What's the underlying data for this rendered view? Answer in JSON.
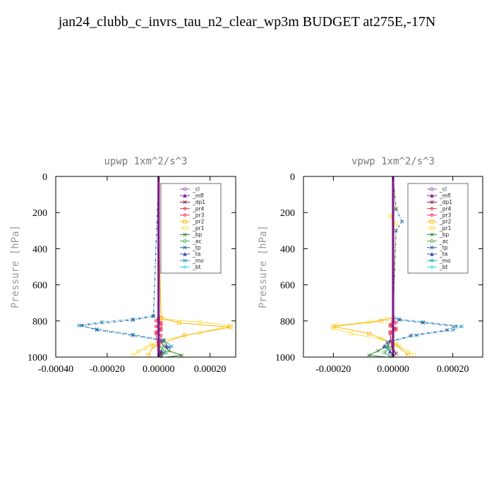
{
  "page": {
    "title": "jan24_clubb_c_invrs_tau_n2_clear_wp3m  BUDGET at275E,-17N"
  },
  "colors": {
    "axis": "#000000",
    "series": {
      "_cl": "#8a5fa8",
      "_mfl": "#7b1fa2",
      "_dp1": "#8b1a3a",
      "_pr4": "#e0304e",
      "_pr3": "#ff3355",
      "_pr2": "#ffb300",
      "_pr1": "#f5e04a",
      "_bp": "#2e7d32",
      "_ac": "#4caf50",
      "_tp": "#1e5aa8",
      "_ta": "#3f51b5",
      "_mo": "#2299bb",
      "_bt": "#29d9e6"
    }
  },
  "chart_data": [
    {
      "type": "line",
      "title": "upwp   1xm^2/s^3",
      "ylabel": "Pressure [hPa]",
      "xlabel": "",
      "xlim": [
        -0.0004,
        0.0003
      ],
      "ylim": [
        1000,
        0
      ],
      "y_inverted": true,
      "xticks": [
        -0.0004,
        -0.0002,
        0.0,
        0.0002
      ],
      "xtick_labels": [
        "-0.00040",
        "-0.00020",
        "0.00000",
        "0.00020"
      ],
      "yticks": [
        0,
        200,
        400,
        600,
        800,
        1000
      ],
      "ytick_labels": [
        "0",
        "200",
        "400",
        "600",
        "800",
        "1000"
      ],
      "legend_position": "top-right",
      "legend": [
        "_cl",
        "_mfl",
        "_dp1",
        "_pr4",
        "_pr3",
        "_pr2",
        "_pr1",
        "_bp",
        "_ac",
        "_tp",
        "_ta",
        "_mo",
        "_bt"
      ],
      "series": [
        {
          "name": "_pr1",
          "x": [
            0,
            0,
            1e-05,
            2e-05,
            0.00016,
            0.00028,
            0.00016,
            2e-05,
            -3e-05,
            -5e-05,
            -8e-05,
            -0.0001
          ],
          "y": [
            0,
            250,
            780,
            790,
            805,
            825,
            865,
            905,
            930,
            950,
            970,
            990
          ]
        },
        {
          "name": "_pr2",
          "x": [
            0,
            0,
            1e-05,
            8e-05,
            0.00028,
            0.0001,
            -2e-05,
            -4e-05
          ],
          "y": [
            0,
            250,
            785,
            810,
            835,
            880,
            940,
            990
          ]
        },
        {
          "name": "_mo",
          "x": [
            0,
            -2e-05,
            -0.0001,
            -0.00022,
            -0.00031,
            -0.00024,
            -0.0001,
            2e-05,
            5e-05,
            2e-05,
            0.0
          ],
          "y": [
            0,
            770,
            790,
            805,
            825,
            845,
            875,
            905,
            940,
            975,
            1000
          ]
        },
        {
          "name": "_tp",
          "x": [
            0,
            -2e-05,
            -0.0001,
            -0.0003,
            -0.00024,
            -0.0001,
            2e-05,
            4e-05,
            1e-05
          ],
          "y": [
            0,
            775,
            795,
            825,
            850,
            880,
            910,
            945,
            990
          ]
        },
        {
          "name": "_ta",
          "x": [
            0,
            0,
            1e-05,
            3e-05,
            1e-05,
            0
          ],
          "y": [
            0,
            880,
            910,
            940,
            970,
            1000
          ]
        },
        {
          "name": "_bp",
          "x": [
            0,
            0,
            2e-05,
            4e-05,
            9e-05,
            3e-05,
            0
          ],
          "y": [
            0,
            900,
            940,
            965,
            990,
            1000,
            1000
          ]
        },
        {
          "name": "_ac",
          "x": [
            0,
            0,
            1e-05,
            3e-05,
            1e-05,
            0
          ],
          "y": [
            0,
            920,
            950,
            975,
            995,
            1000
          ]
        },
        {
          "name": "_pr3",
          "x": [
            0,
            0,
            -1e-05,
            1e-05,
            1e-05,
            -1e-05,
            1e-05,
            0
          ],
          "y": [
            0,
            780,
            800,
            820,
            840,
            860,
            880,
            1000
          ]
        },
        {
          "name": "_pr4",
          "x": [
            0,
            0,
            1e-05,
            -1e-05,
            1e-05,
            -1e-05,
            0
          ],
          "y": [
            0,
            790,
            810,
            830,
            850,
            870,
            1000
          ]
        },
        {
          "name": "_dp1",
          "x": [
            0,
            0,
            1e-05,
            0
          ],
          "y": [
            0,
            950,
            980,
            1000
          ]
        },
        {
          "name": "_cl",
          "x": [
            0,
            0,
            0
          ],
          "y": [
            0,
            500,
            1000
          ]
        },
        {
          "name": "_mfl",
          "x": [
            0,
            0,
            0
          ],
          "y": [
            0,
            500,
            1000
          ]
        },
        {
          "name": "_bt",
          "x": [
            0,
            0,
            0
          ],
          "y": [
            0,
            500,
            1000
          ]
        }
      ]
    },
    {
      "type": "line",
      "title": "vpwp   1xm^2/s^3",
      "ylabel": "Pressure [hPa]",
      "xlabel": "",
      "xlim": [
        -0.0003,
        0.0003
      ],
      "ylim": [
        1000,
        0
      ],
      "y_inverted": true,
      "xticks": [
        -0.0002,
        0.0,
        0.0002
      ],
      "xtick_labels": [
        "-0.00020",
        "0.00000",
        "0.00020"
      ],
      "yticks": [
        0,
        200,
        400,
        600,
        800,
        1000
      ],
      "ytick_labels": [
        "0",
        "200",
        "400",
        "600",
        "800",
        "1000"
      ],
      "legend_position": "top-right",
      "legend": [
        "_cl",
        "_mfl",
        "_dp1",
        "_pr4",
        "_pr3",
        "_pr2",
        "_pr1",
        "_bp",
        "_ac",
        "_tp",
        "_ta",
        "_mo",
        "_bt"
      ],
      "series": [
        {
          "name": "_pr1",
          "x": [
            0,
            1e-05,
            -1e-05,
            1e-05,
            0,
            -2e-05,
            -8e-05,
            -0.00019,
            -0.0002,
            -0.00014,
            -4e-05,
            2e-05,
            5e-05,
            7e-05
          ],
          "y": [
            0,
            180,
            220,
            260,
            780,
            790,
            805,
            825,
            840,
            870,
            900,
            940,
            970,
            990
          ]
        },
        {
          "name": "_pr2",
          "x": [
            0,
            0,
            -4e-05,
            -0.0002,
            -8e-05,
            1e-05,
            5e-05
          ],
          "y": [
            0,
            780,
            800,
            830,
            870,
            930,
            990
          ]
        },
        {
          "name": "_mo",
          "x": [
            0,
            0,
            2e-05,
            0.0001,
            0.00023,
            0.0002,
            8e-05,
            0,
            -2e-05,
            0
          ],
          "y": [
            0,
            770,
            790,
            805,
            830,
            850,
            880,
            910,
            950,
            1000
          ]
        },
        {
          "name": "_tp",
          "x": [
            0,
            1e-05,
            3e-05,
            1e-05,
            0,
            2e-05,
            0.0001,
            0.00021,
            0.00018,
            6e-05,
            -2e-05,
            0
          ],
          "y": [
            0,
            180,
            250,
            300,
            780,
            795,
            810,
            830,
            850,
            880,
            920,
            1000
          ]
        },
        {
          "name": "_ta",
          "x": [
            0,
            0,
            -1e-05,
            -3e-05,
            -1e-05,
            0
          ],
          "y": [
            0,
            880,
            910,
            940,
            970,
            1000
          ]
        },
        {
          "name": "_bp",
          "x": [
            0,
            0,
            -2e-05,
            -5e-05,
            -8e-05,
            -2e-05,
            0
          ],
          "y": [
            0,
            900,
            940,
            965,
            990,
            1000,
            1000
          ]
        },
        {
          "name": "_ac",
          "x": [
            0,
            0,
            -1e-05,
            -3e-05,
            -1e-05,
            0
          ],
          "y": [
            0,
            920,
            950,
            975,
            995,
            1000
          ]
        },
        {
          "name": "_pr3",
          "x": [
            0,
            0,
            1e-05,
            -1e-05,
            1e-05,
            -1e-05,
            0
          ],
          "y": [
            0,
            790,
            810,
            830,
            850,
            870,
            1000
          ]
        },
        {
          "name": "_pr4",
          "x": [
            0,
            0,
            -1e-05,
            1e-05,
            -1e-05,
            0
          ],
          "y": [
            0,
            800,
            820,
            840,
            860,
            1000
          ]
        },
        {
          "name": "_dp1",
          "x": [
            0,
            0,
            1e-05,
            0
          ],
          "y": [
            0,
            950,
            980,
            1000
          ]
        },
        {
          "name": "_cl",
          "x": [
            0,
            0,
            0
          ],
          "y": [
            0,
            500,
            1000
          ]
        },
        {
          "name": "_mfl",
          "x": [
            0,
            0,
            0
          ],
          "y": [
            0,
            500,
            1000
          ]
        },
        {
          "name": "_bt",
          "x": [
            0,
            0,
            0
          ],
          "y": [
            0,
            500,
            1000
          ]
        }
      ]
    }
  ]
}
